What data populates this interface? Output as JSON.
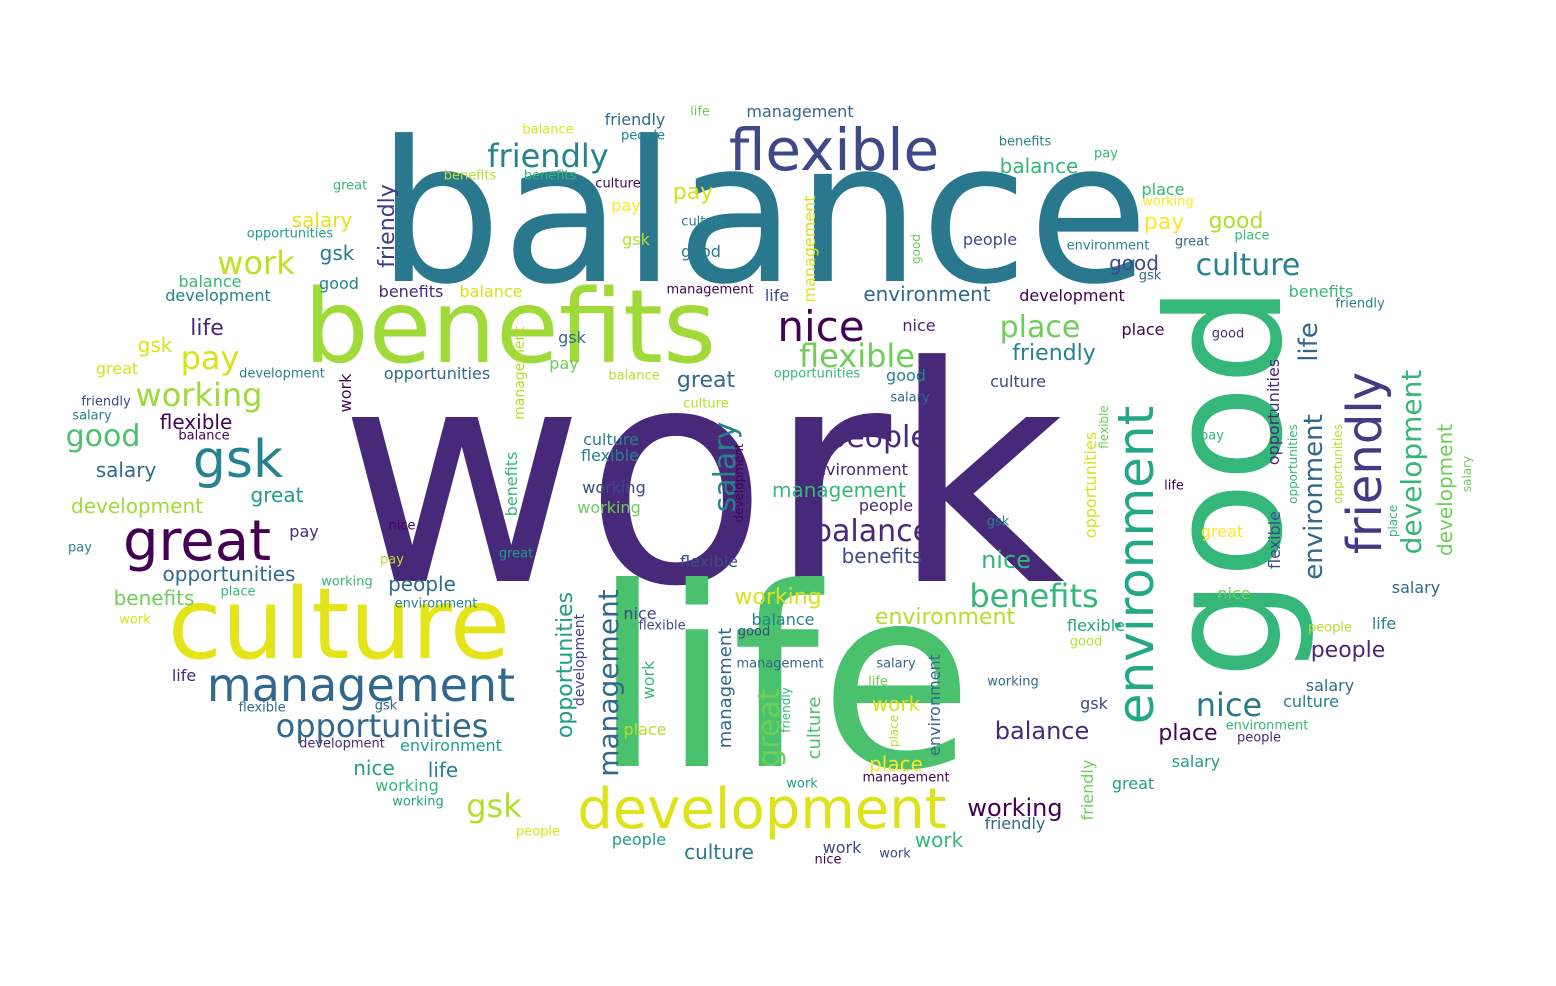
{
  "palette": {
    "dark_purple": "#440154",
    "indigo": "#482878",
    "blue": "#3e4989",
    "steel_blue": "#31688e",
    "teal": "#26828e",
    "sea_green": "#1f9e89",
    "green": "#35b779",
    "light_green": "#6ece58",
    "yellow_green": "#b5de2b",
    "yellow": "#fde725"
  },
  "words": [
    {
      "text": "work",
      "weight": 1.0,
      "color": "#482878"
    },
    {
      "text": "life",
      "weight": 0.85,
      "color": "#4ac16d"
    },
    {
      "text": "balance",
      "weight": 0.7,
      "color": "#2a788e"
    },
    {
      "text": "good",
      "weight": 0.6,
      "color": "#35b779"
    },
    {
      "text": "benefits",
      "weight": 0.5,
      "color": "#a0da39"
    },
    {
      "text": "culture",
      "weight": 0.45,
      "color": "#e4e419"
    },
    {
      "text": "flexible",
      "weight": 0.3,
      "color": "#3e4989"
    },
    {
      "text": "development",
      "weight": 0.3,
      "color": "#dde318"
    },
    {
      "text": "environment",
      "weight": 0.3,
      "color": "#22a884"
    },
    {
      "text": "friendly",
      "weight": 0.3,
      "color": "#443a83"
    },
    {
      "text": "great",
      "weight": 0.25,
      "color": "#440154"
    },
    {
      "text": "management",
      "weight": 0.22,
      "color": "#31688e"
    },
    {
      "text": "nice",
      "weight": 0.2,
      "color": "#440154"
    },
    {
      "text": "gsk",
      "weight": 0.2,
      "color": "#26828e"
    },
    {
      "text": "opportunities",
      "weight": 0.2,
      "color": "#31688e"
    },
    {
      "text": "people",
      "weight": 0.18,
      "color": "#482878"
    },
    {
      "text": "place",
      "weight": 0.18,
      "color": "#6ece58"
    },
    {
      "text": "pay",
      "weight": 0.15,
      "color": "#d8e219"
    },
    {
      "text": "salary",
      "weight": 0.15,
      "color": "#2c728e"
    },
    {
      "text": "working",
      "weight": 0.15,
      "color": "#b5de2b"
    }
  ]
}
